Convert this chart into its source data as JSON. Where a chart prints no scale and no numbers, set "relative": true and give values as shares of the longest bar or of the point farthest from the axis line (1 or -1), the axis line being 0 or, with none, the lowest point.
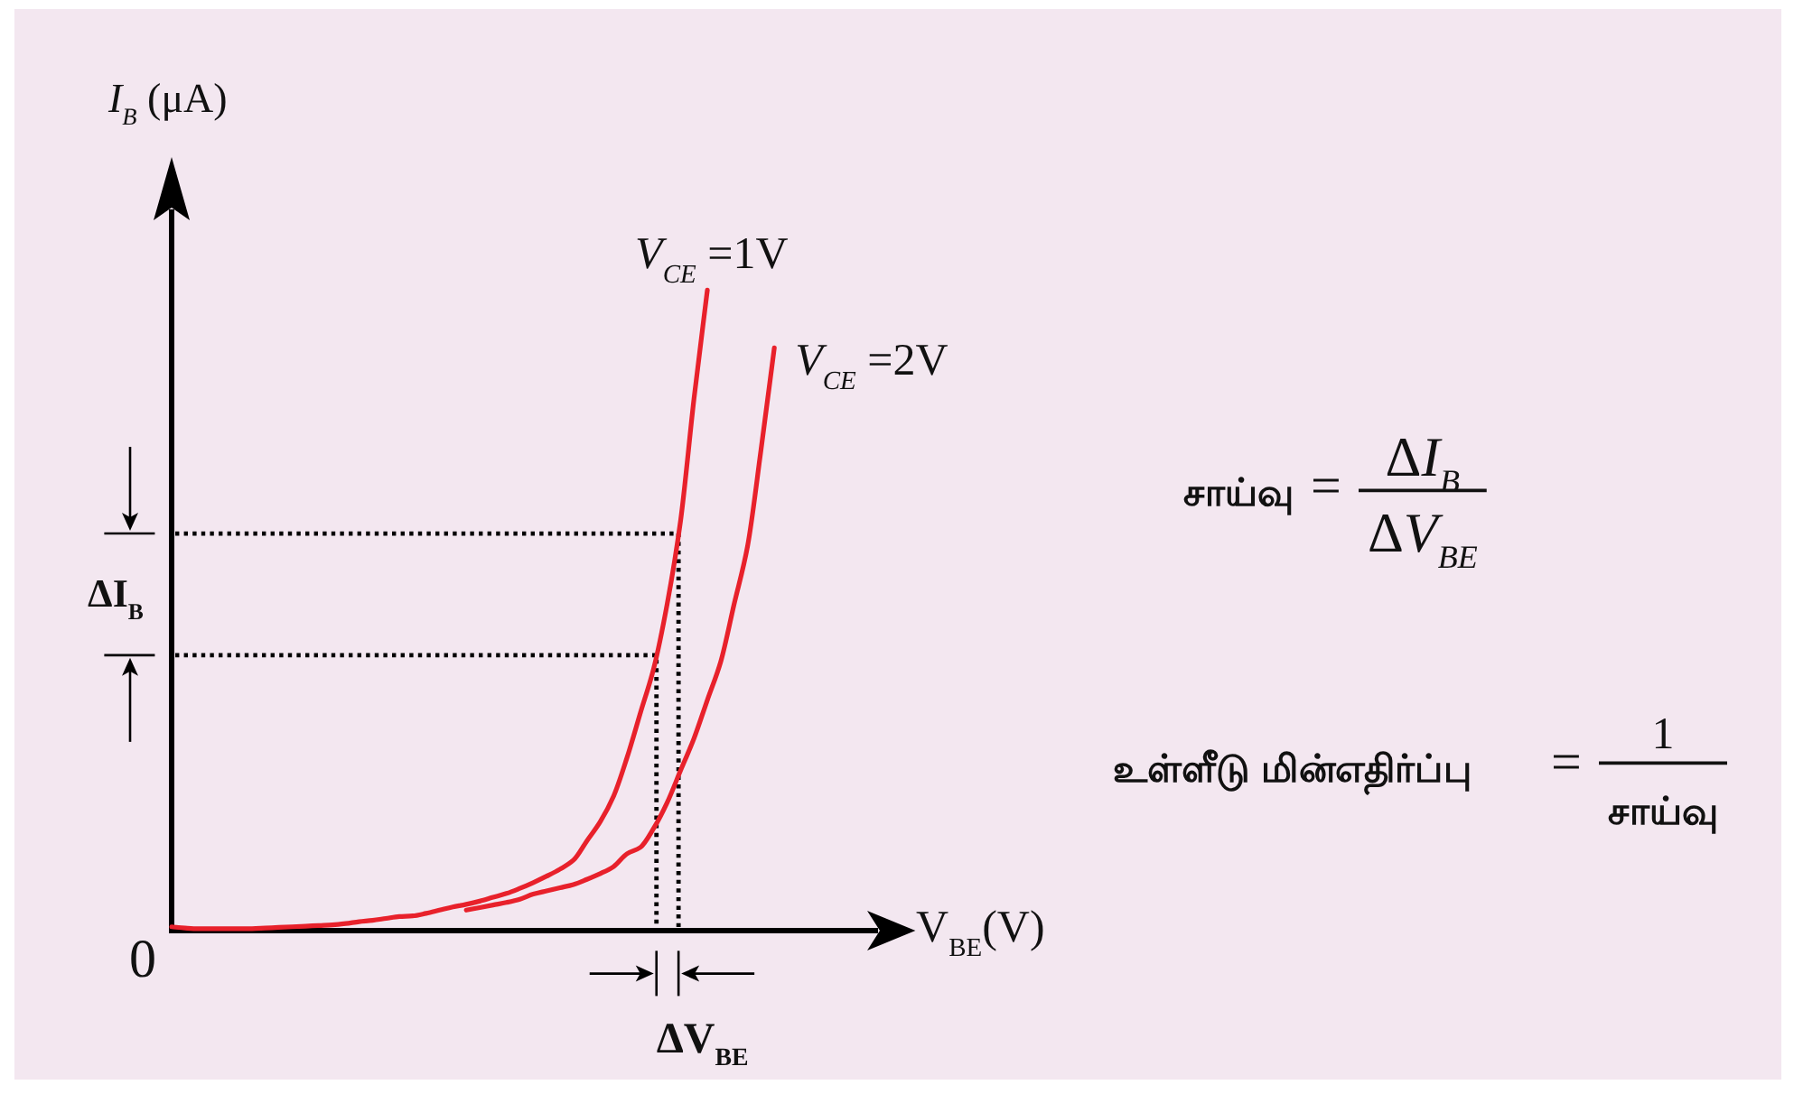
{
  "chart_data": {
    "type": "line",
    "relative": true,
    "legend": false,
    "line_style": "solid",
    "xlabel": "V$_{BE}$(V)",
    "ylabel": "*I*$_{B}$ (μA)",
    "categories": [
      null,
      null,
      null,
      null,
      null,
      null,
      null,
      null,
      null,
      null,
      null,
      null,
      null,
      null,
      null,
      null,
      null,
      null,
      null,
      null,
      null,
      null,
      null,
      null,
      null,
      null,
      null,
      null,
      null,
      null,
      null,
      null,
      null,
      null,
      null,
      null,
      null,
      null,
      null,
      null,
      null,
      null,
      null,
      null,
      null,
      null
    ],
    "series": [
      {
        "name": "*V*$_{CE}$ =1V",
        "color": "#e8212b",
        "values": [
          0.006,
          0.004,
          0.003,
          0.003,
          0.003,
          0.003,
          0.003,
          0.004,
          0.005,
          0.006,
          0.007,
          0.008,
          0.009,
          0.011,
          0.014,
          0.016,
          0.019,
          0.022,
          0.023,
          0.027,
          0.032,
          0.037,
          0.041,
          0.046,
          0.052,
          0.058,
          0.066,
          0.075,
          0.085,
          0.096,
          0.11,
          0.14,
          0.17,
          0.21,
          0.27,
          0.34,
          0.41,
          0.51,
          0.64,
          0.83,
          1.0,
          null,
          null,
          null,
          null,
          null
        ]
      },
      {
        "name": "*V*$_{CE}$ =2V",
        "color": "#e8212b",
        "values": [
          null,
          null,
          null,
          null,
          null,
          null,
          null,
          null,
          null,
          null,
          null,
          null,
          null,
          null,
          null,
          null,
          null,
          null,
          null,
          null,
          null,
          null,
          0.032,
          0.036,
          0.04,
          0.044,
          0.049,
          0.057,
          0.062,
          0.067,
          0.072,
          0.08,
          0.089,
          0.1,
          0.12,
          0.13,
          0.16,
          0.2,
          0.25,
          0.3,
          0.36,
          0.42,
          0.51,
          0.6,
          0.75,
          0.91
        ]
      }
    ],
    "ref_lines": [
      {
        "axis": "y",
        "value": 0.43,
        "line_style": "dotted",
        "color": "#000000"
      },
      {
        "axis": "y",
        "value": 0.62,
        "line_style": "dotted",
        "color": "#000000"
      }
    ],
    "annotations": [
      "0",
      "ΔI$_{B}$",
      "ΔV$_{BE}$",
      "சாய்வு =",
      "ΔI$_{B}$",
      "ΔV$_{BE}$",
      "உள்ளீடு மின்எதிர்ப்பு =",
      "1",
      "சாய்வு"
    ]
  }
}
